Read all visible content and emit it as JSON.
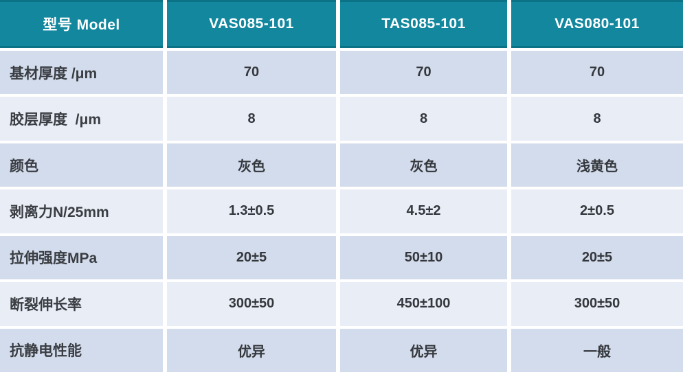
{
  "colors": {
    "header-bg": "#12879E",
    "header-edge": "#0C7387",
    "band-dark": "#D3DCEC",
    "band-light": "#E9EDF6",
    "header-text": "#FFFFFF",
    "label-text": "#3A3D42",
    "value-text": "#34373C",
    "page-bg": "#FFFFFF"
  },
  "table": {
    "header": {
      "model_label": "型号 Model",
      "columns": [
        "VAS085-101",
        "TAS085-101",
        "VAS080-101"
      ]
    },
    "rows": [
      {
        "label": "基材厚度 /μm",
        "values": [
          "70",
          "70",
          "70"
        ]
      },
      {
        "label": "胶层厚度  /μm",
        "values": [
          "8",
          "8",
          "8"
        ]
      },
      {
        "label": "颜色",
        "values": [
          "灰色",
          "灰色",
          "浅黄色"
        ]
      },
      {
        "label": "剥离力N/25mm",
        "values": [
          "1.3±0.5",
          "4.5±2",
          "2±0.5"
        ]
      },
      {
        "label": "拉伸强度MPa",
        "values": [
          "20±5",
          "50±10",
          "20±5"
        ]
      },
      {
        "label": "断裂伸长率",
        "values": [
          "300±50",
          "450±100",
          "300±50"
        ]
      },
      {
        "label": "抗静电性能",
        "values": [
          "优异",
          "优异",
          "一般"
        ]
      }
    ]
  }
}
